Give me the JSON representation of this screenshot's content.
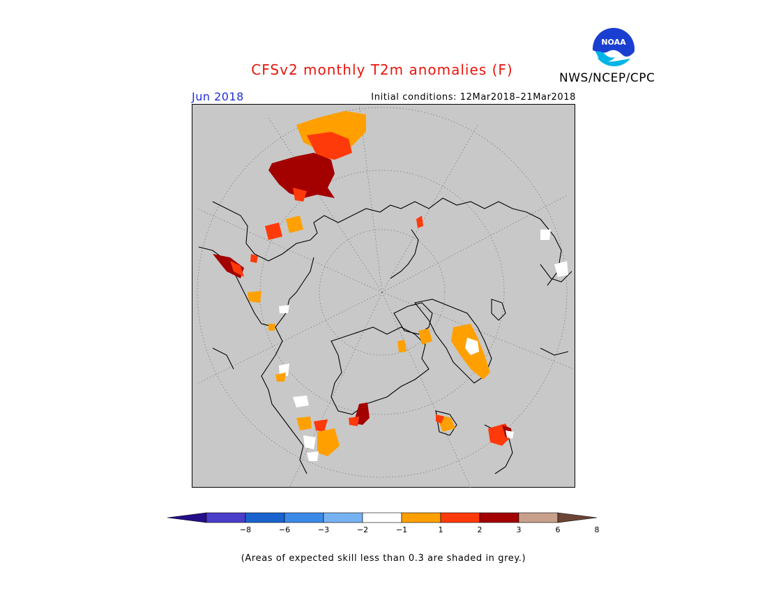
{
  "header": {
    "title": "CFSv2 monthly T2m anomalies (F)",
    "agency": "NWS/NCEP/CPC",
    "logo_text": "NOAA",
    "month": "Jun 2018",
    "initial_conditions": "Initial conditions: 12Mar2018–21Mar2018"
  },
  "legend": {
    "colors": [
      "#250e8a",
      "#4a3dc9",
      "#1a63cf",
      "#3c8ae8",
      "#76b2f2",
      "#ffffff",
      "#ffa000",
      "#ff3a0a",
      "#a30000",
      "#c8a08c",
      "#6b4435"
    ],
    "labels": [
      "−8",
      "−6",
      "−3",
      "−2",
      "−1",
      "1",
      "2",
      "3",
      "6",
      "8"
    ]
  },
  "footnote": "(Areas of expected skill less than 0.3 are shaded in grey.)",
  "map": {
    "projection": "polar stereographic (North Pole)",
    "background_color": "#c8c8c8"
  }
}
